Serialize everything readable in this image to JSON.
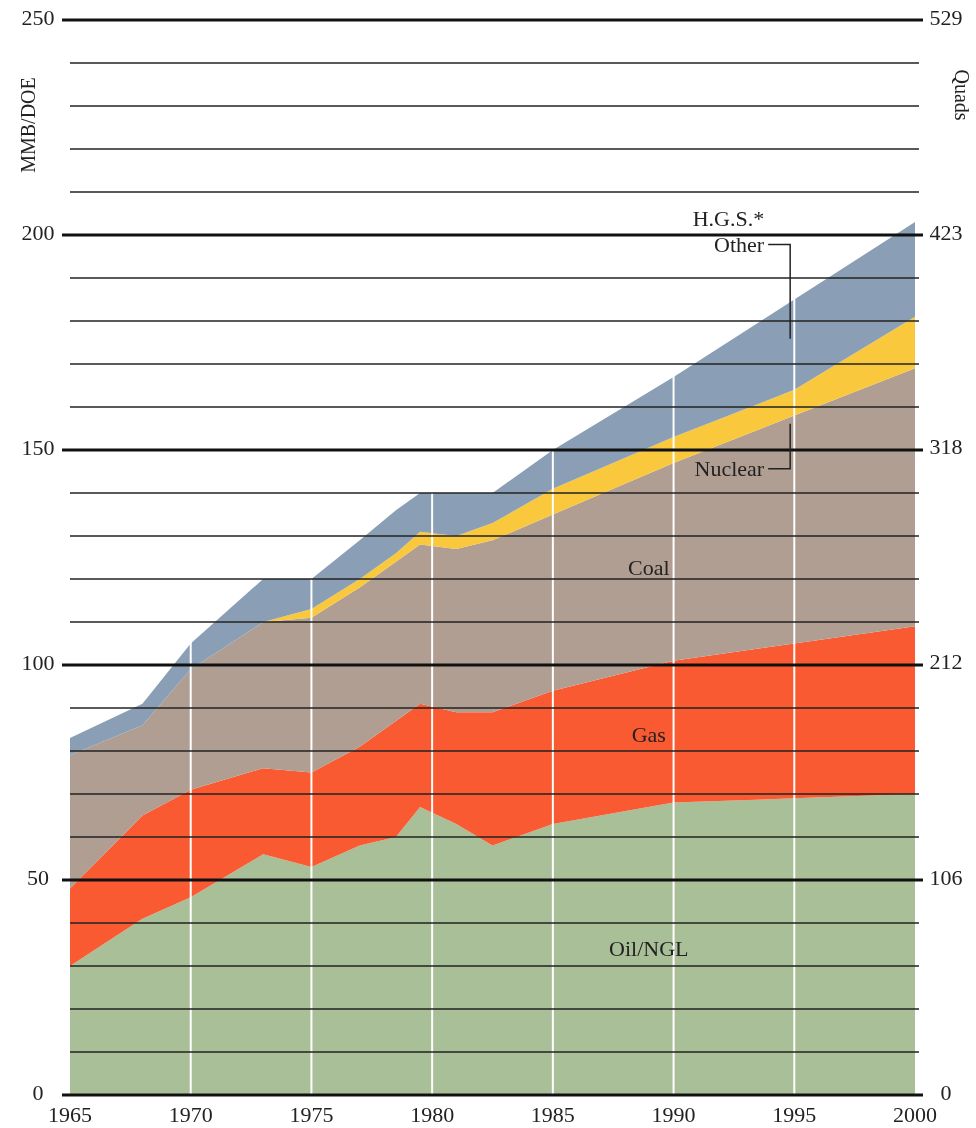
{
  "chart_data": {
    "type": "area",
    "stacked": true,
    "grid": true,
    "x": [
      1965,
      1968,
      1970,
      1973,
      1975,
      1977,
      1978.5,
      1979.5,
      1981,
      1982.5,
      1985,
      1990,
      1995,
      2000
    ],
    "xlim": [
      1965,
      2000
    ],
    "xticks": [
      1965,
      1970,
      1975,
      1980,
      1985,
      1990,
      1995,
      2000
    ],
    "ylim": [
      0,
      250
    ],
    "yticks": [
      0,
      {
        "value": 10,
        "label": null
      },
      {
        "value": 20,
        "label": null
      },
      {
        "value": 30,
        "label": null
      },
      {
        "value": 40,
        "label": null
      },
      50,
      {
        "value": 60,
        "label": null
      },
      {
        "value": 70,
        "label": null
      },
      {
        "value": 80,
        "label": null
      },
      {
        "value": 90,
        "label": null
      },
      100,
      {
        "value": 110,
        "label": null
      },
      {
        "value": 120,
        "label": null
      },
      {
        "value": 130,
        "label": null
      },
      {
        "value": 140,
        "label": null
      },
      150,
      {
        "value": 160,
        "label": null
      },
      {
        "value": 170,
        "label": null
      },
      {
        "value": 180,
        "label": null
      },
      {
        "value": 190,
        "label": null
      },
      200,
      {
        "value": 210,
        "label": null
      },
      {
        "value": 220,
        "label": null
      },
      {
        "value": 230,
        "label": null
      },
      {
        "value": 240,
        "label": null
      },
      250
    ],
    "y2lim": [
      0,
      529
    ],
    "y2ticks": [
      0,
      106,
      212,
      318,
      423,
      529
    ],
    "ylabel": "MMB/DOE",
    "y2label": "Quads",
    "series": [
      {
        "name": "Oil/NGL",
        "color": "#a9bf98",
        "values": [
          30,
          41,
          46,
          56,
          53,
          58,
          60,
          67,
          63,
          58,
          63,
          68,
          69,
          70
        ]
      },
      {
        "name": "Gas",
        "color": "#fa5a32",
        "values": [
          18,
          24,
          25,
          20,
          22,
          23,
          27,
          24,
          26,
          31,
          31,
          33,
          36,
          39
        ]
      },
      {
        "name": "Coal",
        "color": "#b09e92",
        "values": [
          31,
          21,
          28,
          34,
          36,
          37,
          37,
          37,
          38,
          40,
          41,
          46,
          53,
          60
        ]
      },
      {
        "name": "Nuclear",
        "color": "#fac83c",
        "values": [
          0,
          0,
          0,
          0,
          2,
          2,
          2,
          3,
          3,
          4,
          6,
          6,
          6,
          12
        ]
      },
      {
        "name": "H.G.S.* Other",
        "color": "#8a9fb5",
        "values": [
          4,
          5,
          6,
          10,
          7,
          9,
          10,
          9,
          10,
          7,
          9,
          14,
          21,
          22
        ]
      }
    ]
  }
}
